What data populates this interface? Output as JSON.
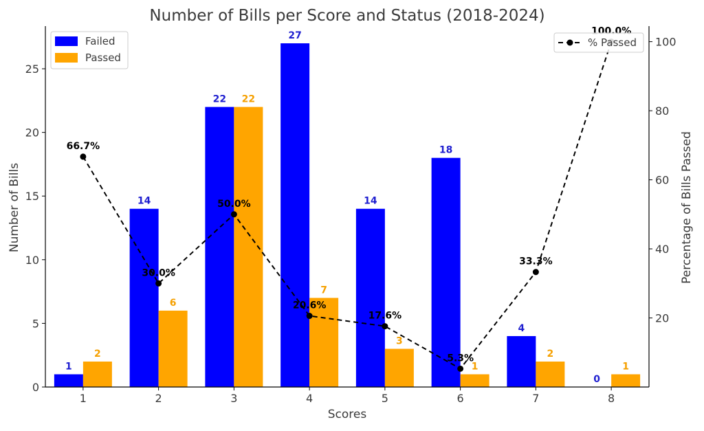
{
  "chart_data": {
    "type": "bar",
    "title": "Number of Bills per Score and Status (2018-2024)",
    "xlabel": "Scores",
    "ylabel": "Number of Bills",
    "y2label": "Percentage of Bills Passed",
    "categories": [
      "1",
      "2",
      "3",
      "4",
      "5",
      "6",
      "7",
      "8"
    ],
    "ylim": [
      0,
      28.35
    ],
    "y2lim": [
      0,
      104.5
    ],
    "yticks": [
      "0",
      "5",
      "10",
      "15",
      "20",
      "25"
    ],
    "y2ticks": [
      "20",
      "40",
      "60",
      "80",
      "100"
    ],
    "series": [
      {
        "name": "Failed",
        "color": "#0000ff",
        "values": [
          1,
          14,
          22,
          27,
          14,
          18,
          4,
          0
        ],
        "labels": [
          "1",
          "14",
          "22",
          "27",
          "14",
          "18",
          "4",
          "0"
        ]
      },
      {
        "name": "Passed",
        "color": "#ffa500",
        "values": [
          2,
          6,
          22,
          7,
          3,
          1,
          2,
          1
        ],
        "labels": [
          "2",
          "6",
          "22",
          "7",
          "3",
          "1",
          "2",
          "1"
        ]
      }
    ],
    "line_series": {
      "name": "% Passed",
      "color": "#000000",
      "style": "dashed",
      "axis": "secondary",
      "values": [
        66.7,
        30.0,
        50.0,
        20.6,
        17.6,
        5.3,
        33.3,
        100.0
      ],
      "labels": [
        "66.7%",
        "30.0%",
        "50.0%",
        "20.6%",
        "17.6%",
        "5.3%",
        "33.3%",
        "100.0%"
      ]
    },
    "legend_bars": "top-left",
    "legend_line": "top-right",
    "grid": false
  }
}
